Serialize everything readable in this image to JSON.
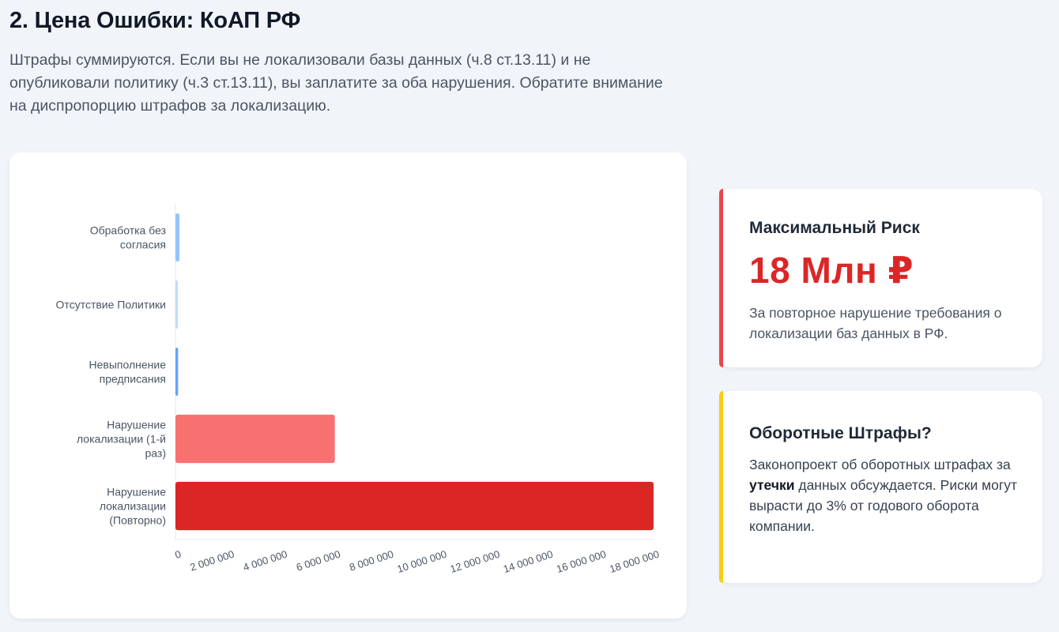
{
  "header": {
    "title": "2. Цена Ошибки: КоАП РФ",
    "intro": "Штрафы суммируются. Если вы не локализовали базы данных (ч.8 ст.13.11) и не опубликовали политику (ч.3 ст.13.11), вы заплатите за оба нарушения. Обратите внимание на диспропорцию штрафов за локализацию."
  },
  "chart_data": {
    "type": "bar",
    "orientation": "horizontal",
    "categories": [
      [
        "Обработка без",
        "согласия"
      ],
      [
        "Отсутствие Политики"
      ],
      [
        "Невыполнение",
        "предписания"
      ],
      [
        "Нарушение",
        "локализации (1-й",
        "раз)"
      ],
      [
        "Нарушение",
        "локализации",
        "(Повторно)"
      ]
    ],
    "values": [
      150000,
      60000,
      100000,
      6000000,
      18000000
    ],
    "colors": [
      "#93c5fd",
      "#bfdbfe",
      "#60a5fa",
      "#f87171",
      "#dc2626"
    ],
    "x_ticks": [
      "0",
      "2 000 000",
      "4 000 000",
      "6 000 000",
      "8 000 000",
      "10 000 000",
      "12 000 000",
      "14 000 000",
      "16 000 000",
      "18 000 000"
    ],
    "xlim": [
      0,
      18000000
    ],
    "grid": false,
    "legend": "none"
  },
  "risk_card": {
    "heading": "Максимальный Риск",
    "value": "18 Млн ₽",
    "description": "За повторное нарушение требования о локализации баз данных в РФ.",
    "accent_color": "#e5484d",
    "value_color": "#dc2626"
  },
  "turnover_card": {
    "heading": "Оборотные Штрафы?",
    "text_before": "Законопроект об оборотных штрафах за ",
    "text_bold": "утечки",
    "text_after": " данных обсуждается. Риски могут вырасти до 3% от годового оборота компании.",
    "accent_color": "#facc15"
  }
}
